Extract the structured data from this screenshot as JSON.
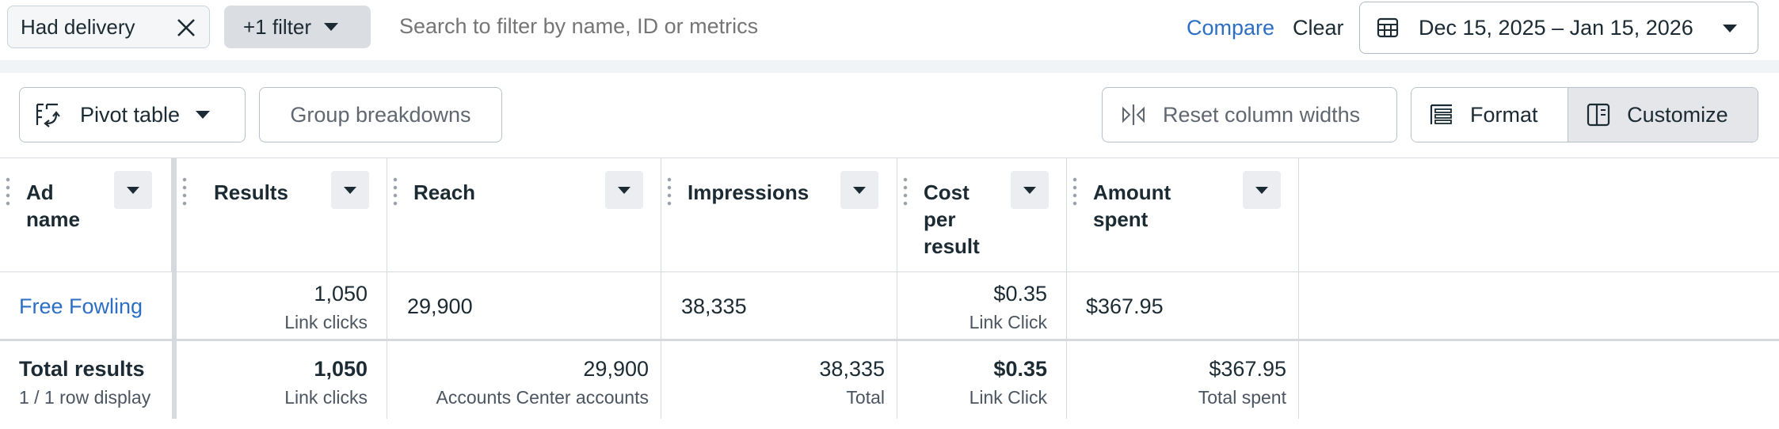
{
  "filters": {
    "delivery_chip": "Had delivery",
    "extra_filter_chip": "+1 filter",
    "search_placeholder": "Search to filter by name, ID or metrics",
    "compare_label": "Compare",
    "clear_label": "Clear",
    "date_range": "Dec 15, 2025 – Jan 15, 2026"
  },
  "toolbar": {
    "pivot_label": "Pivot table",
    "group_label": "Group breakdowns",
    "reset_label": "Reset column widths",
    "format_label": "Format",
    "customize_label": "Customize"
  },
  "columns": [
    {
      "title": "Ad\nname"
    },
    {
      "title": "Results"
    },
    {
      "title": "Reach"
    },
    {
      "title": "Impressions"
    },
    {
      "title": "Cost\nper\nresult"
    },
    {
      "title": "Amount\nspent"
    }
  ],
  "rows": [
    {
      "ad_name": "Free Fowling",
      "results": "1,050",
      "results_sub": "Link clicks",
      "reach": "29,900",
      "impressions": "38,335",
      "cost_per_result": "$0.35",
      "cost_sub": "Link Click",
      "amount_spent": "$367.95"
    }
  ],
  "totals": {
    "label": "Total results",
    "sub": "1 / 1 row display",
    "results": "1,050",
    "results_sub": "Link clicks",
    "reach": "29,900",
    "reach_sub": "Accounts Center accounts",
    "impressions": "38,335",
    "impressions_sub": "Total",
    "cost_per_result": "$0.35",
    "cost_sub": "Link Click",
    "amount_spent": "$367.95",
    "amount_sub": "Total spent"
  },
  "colors": {
    "link": "#2d6ec5",
    "text": "#1c2b33",
    "muted": "#606770"
  },
  "icons": [
    "close-icon",
    "chevron-down-icon",
    "calendar-icon",
    "pivot-table-icon",
    "column-resize-icon",
    "format-icon",
    "customize-icon",
    "drag-handle-icon"
  ]
}
